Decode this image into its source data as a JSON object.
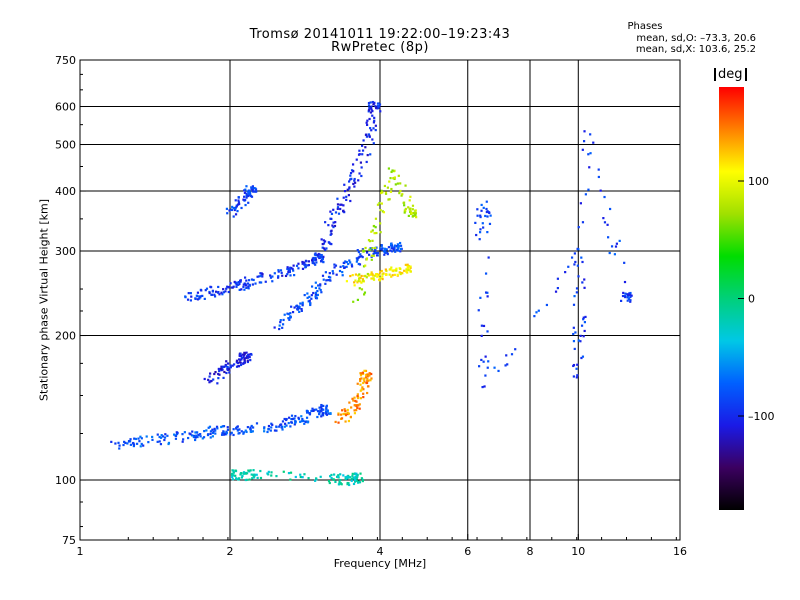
{
  "title_line1": "Tromsø 20141011 19:22:00–19:23:43",
  "title_line2": "RwPretec (8p)",
  "stats": {
    "header": "Phases",
    "line1": "mean, sd,O: –73.3, 20.6",
    "line2": "mean, sd,X: 103.6, 25.2"
  },
  "colorbar": {
    "unit": "deg",
    "ticks": [
      "100",
      "0",
      "–100"
    ],
    "tick_values": [
      100,
      0,
      -100
    ],
    "range": [
      -180,
      180
    ],
    "colors": [
      "#000000",
      "#3b0060",
      "#1a1ae6",
      "#0060ff",
      "#00c8e6",
      "#00d07a",
      "#00dd00",
      "#a0e000",
      "#ffff00",
      "#ff8000",
      "#ff0000"
    ]
  },
  "chart_data": {
    "type": "scatter",
    "xlabel": "Frequency [MHz]",
    "ylabel": "Stationary phase Virtual Height [km]",
    "x_scale": "log2",
    "y_scale": "log",
    "xlim": [
      1,
      16
    ],
    "ylim": [
      75,
      750
    ],
    "x_ticks": [
      1,
      2,
      4,
      6,
      8,
      10,
      16
    ],
    "x_tick_labels": [
      "1",
      "2",
      "4",
      "6",
      "8",
      "10",
      "16"
    ],
    "y_ticks": [
      75,
      100,
      200,
      300,
      400,
      500,
      600,
      750
    ],
    "y_tick_labels": [
      "75",
      "100",
      "200",
      "300",
      "400",
      "500",
      "600",
      "750"
    ],
    "x_gridlines": [
      2,
      4,
      6,
      8,
      10
    ],
    "y_gridlines": [
      100,
      200,
      300,
      400,
      500,
      600
    ],
    "grid": true,
    "traces": [
      {
        "f": [
          1.15,
          1.3,
          1.5,
          1.7,
          1.85,
          2.0,
          2.2,
          2.5,
          2.7,
          2.9,
          3.1
        ],
        "h": [
          118,
          120,
          122,
          124,
          126,
          127,
          128,
          130,
          133,
          136,
          140
        ],
        "phase": -80
      },
      {
        "f": [
          1.65,
          1.8,
          1.95,
          2.1,
          2.3,
          2.6,
          2.85,
          3.0
        ],
        "h": [
          240,
          245,
          250,
          255,
          262,
          272,
          282,
          290
        ],
        "phase": -95
      },
      {
        "f": [
          2.5,
          2.7,
          2.9,
          3.1,
          3.4,
          3.7,
          4.0,
          4.3
        ],
        "h": [
          210,
          225,
          240,
          260,
          280,
          295,
          300,
          305
        ],
        "phase": -85
      },
      {
        "f": [
          3.05,
          3.2,
          3.4,
          3.6,
          3.8,
          3.9
        ],
        "h": [
          300,
          340,
          390,
          440,
          520,
          600
        ],
        "phase": -100
      },
      {
        "f": [
          1.8,
          1.95,
          2.05,
          2.15
        ],
        "h": [
          160,
          170,
          175,
          180
        ],
        "phase": -105
      },
      {
        "f": [
          2.0,
          2.1,
          2.2
        ],
        "h": [
          360,
          380,
          400
        ],
        "phase": -90
      },
      {
        "f": [
          3.3,
          3.5,
          3.65,
          3.75
        ],
        "h": [
          132,
          140,
          150,
          165
        ],
        "phase": 140
      },
      {
        "f": [
          3.5,
          3.8,
          4.1,
          4.5
        ],
        "h": [
          260,
          265,
          268,
          275
        ],
        "phase": 110
      },
      {
        "f": [
          2.0,
          2.1,
          2.3,
          3.2,
          3.4,
          3.6
        ],
        "h": [
          103,
          102,
          103,
          101,
          100,
          101
        ],
        "phase": -20
      },
      {
        "f": [
          3.6,
          3.8,
          4.0,
          4.3,
          4.6
        ],
        "h": [
          230,
          300,
          370,
          440,
          360
        ],
        "phase": 80
      },
      {
        "f": [
          6.3,
          6.5,
          6.4,
          10.1,
          10.0,
          10.3,
          12.5
        ],
        "h": [
          320,
          380,
          150,
          300,
          160,
          560,
          240
        ],
        "phase": -90
      }
    ]
  }
}
